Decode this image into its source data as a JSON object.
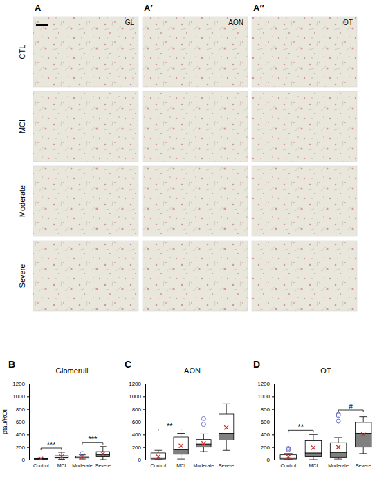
{
  "figure": {
    "columns": [
      {
        "letter": "A",
        "region": "GL"
      },
      {
        "letter": "A′",
        "region": "AON"
      },
      {
        "letter": "A″",
        "region": "OT"
      }
    ],
    "rows": [
      "CTL",
      "MCI",
      "Moderate",
      "Severe"
    ]
  },
  "chart_data": [
    {
      "type": "box",
      "panel_label": "B",
      "title": "Glomeruli",
      "y_label": "ptau/ROI",
      "categories": [
        "Control",
        "MCI",
        "Moderate",
        "Severe"
      ],
      "color": "#808080",
      "ylim": [
        0,
        1200
      ],
      "yticks": [
        0,
        200,
        400,
        600,
        800,
        1000,
        1200
      ],
      "boxes": [
        {
          "whisker_low": 0,
          "q1": 5,
          "median": 15,
          "q3": 25,
          "whisker_high": 30,
          "mean": 15,
          "outliers": []
        },
        {
          "whisker_low": 5,
          "q1": 25,
          "median": 40,
          "q3": 65,
          "whisker_high": 120,
          "mean": 50,
          "outliers": []
        },
        {
          "whisker_low": 10,
          "q1": 25,
          "median": 35,
          "q3": 55,
          "whisker_high": 80,
          "mean": 45,
          "outliers": [
            100
          ]
        },
        {
          "whisker_low": 0,
          "q1": 50,
          "median": 85,
          "q3": 130,
          "whisker_high": 210,
          "mean": 95,
          "outliers": []
        }
      ],
      "annotations": [
        {
          "text": "***",
          "from": 0,
          "to": 1
        },
        {
          "text": "***",
          "from": 2,
          "to": 3
        }
      ]
    },
    {
      "type": "box",
      "panel_label": "C",
      "title": "AON",
      "categories": [
        "Control",
        "MCI",
        "Moderate",
        "Severe"
      ],
      "color": "#808080",
      "ylim": [
        0,
        1200
      ],
      "yticks": [
        0,
        200,
        400,
        600,
        800,
        1000,
        1200
      ],
      "boxes": [
        {
          "whisker_low": 0,
          "q1": 10,
          "median": 30,
          "q3": 110,
          "whisker_high": 150,
          "mean": 50,
          "outliers": []
        },
        {
          "whisker_low": 10,
          "q1": 90,
          "median": 160,
          "q3": 360,
          "whisker_high": 420,
          "mean": 220,
          "outliers": []
        },
        {
          "whisker_low": 130,
          "q1": 200,
          "median": 250,
          "q3": 320,
          "whisker_high": 410,
          "mean": 260,
          "outliers": [
            560,
            650
          ]
        },
        {
          "whisker_low": 150,
          "q1": 310,
          "median": 420,
          "q3": 720,
          "whisker_high": 880,
          "mean": 510,
          "outliers": []
        }
      ],
      "annotations": [
        {
          "text": "**",
          "from": 0,
          "to": 1
        }
      ]
    },
    {
      "type": "box",
      "panel_label": "D",
      "title": "OT",
      "categories": [
        "Control",
        "MCI",
        "Moderate",
        "Severe"
      ],
      "color": "#808080",
      "ylim": [
        0,
        1200
      ],
      "yticks": [
        0,
        200,
        400,
        600,
        800,
        1000,
        1200
      ],
      "boxes": [
        {
          "whisker_low": 0,
          "q1": 10,
          "median": 30,
          "q3": 80,
          "whisker_high": 100,
          "mean": 50,
          "outliers": [
            160,
            180
          ]
        },
        {
          "whisker_low": 0,
          "q1": 50,
          "median": 110,
          "q3": 300,
          "whisker_high": 400,
          "mean": 190,
          "outliers": []
        },
        {
          "whisker_low": 10,
          "q1": 40,
          "median": 120,
          "q3": 270,
          "whisker_high": 350,
          "mean": 200,
          "outliers": [
            610,
            700,
            720
          ]
        },
        {
          "whisker_low": 100,
          "q1": 200,
          "median": 420,
          "q3": 590,
          "whisker_high": 680,
          "mean": 400,
          "outliers": []
        }
      ],
      "annotations": [
        {
          "text": "**",
          "from": 0,
          "to": 1
        },
        {
          "text": "#",
          "from": 2,
          "to": 3
        }
      ]
    }
  ]
}
